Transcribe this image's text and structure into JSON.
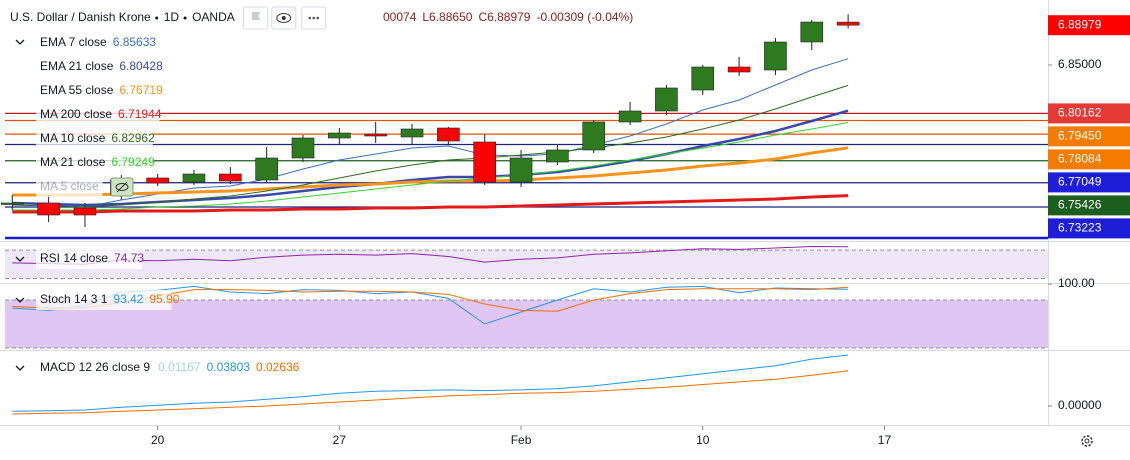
{
  "chart_data": [
    {
      "type": "candlestick",
      "title": "U.S. Dollar / Danish Krone",
      "interval": "1D",
      "source": "OANDA",
      "header_values": [
        "00074",
        "L6.88650",
        "C6.88979",
        "-0.00309 (-0.04%)"
      ],
      "categories": [
        null,
        null,
        null,
        null,
        null,
        null,
        null,
        null,
        null,
        null,
        null,
        null,
        null,
        null,
        null,
        null,
        null,
        null,
        null,
        null,
        null,
        null,
        null,
        null
      ],
      "open": [
        6.711,
        6.712,
        6.707,
        6.72,
        6.737,
        6.733,
        6.741,
        6.735,
        6.757,
        6.777,
        6.781,
        6.778,
        6.787,
        6.773,
        6.733,
        6.753,
        6.765,
        6.793,
        6.804,
        6.825,
        6.848,
        6.845,
        6.873,
        6.89288
      ],
      "high": [
        6.72,
        6.72,
        6.712,
        6.74,
        6.741,
        6.745,
        6.748,
        6.768,
        6.78,
        6.787,
        6.793,
        6.791,
        6.788,
        6.781,
        6.765,
        6.77,
        6.795,
        6.813,
        6.83,
        6.85,
        6.858,
        6.877,
        6.895,
        6.90074
      ],
      "low": [
        6.705,
        6.693,
        6.688,
        6.715,
        6.729,
        6.73,
        6.731,
        6.732,
        6.753,
        6.77,
        6.772,
        6.77,
        6.77,
        6.73,
        6.728,
        6.75,
        6.762,
        6.79,
        6.8,
        6.82,
        6.839,
        6.84,
        6.865,
        6.8865
      ],
      "close": [
        6.712,
        6.7,
        6.7,
        6.735,
        6.732,
        6.741,
        6.734,
        6.757,
        6.777,
        6.782,
        6.779,
        6.786,
        6.774,
        6.733,
        6.757,
        6.765,
        6.793,
        6.804,
        6.827,
        6.848,
        6.843,
        6.873,
        6.893,
        6.88979
      ],
      "up_color": "#2e7a1f",
      "down_color": "#ff0000",
      "last_price_color": "#ff0000",
      "ylim": [
        6.675,
        6.91
      ],
      "yticks": [
        {
          "value": 6.85,
          "label": "6.85000"
        }
      ],
      "xlim": [
        -0.2,
        28.5
      ],
      "xticks": [
        {
          "value": 4,
          "label": "20"
        },
        {
          "value": 9,
          "label": "27"
        },
        {
          "value": 14,
          "label": "Feb"
        },
        {
          "value": 19,
          "label": "10"
        },
        {
          "value": 24,
          "label": "17"
        }
      ],
      "levels": [
        {
          "value": 6.80162,
          "label": "6.80162",
          "color": "#e53935",
          "line_color": "#b71c1c"
        },
        {
          "value": 6.7945,
          "label": "6.79450",
          "color": "#f57c00",
          "line_color": "#e65100"
        },
        {
          "value": 6.78084,
          "label": "6.78084",
          "color": "#f57c00",
          "line_color": "#e65100"
        },
        {
          "value": 6.77049,
          "label": "6.77049",
          "color": "#1e1ed8",
          "line_color": "#1a237e"
        },
        {
          "value": 6.75426,
          "label": "6.75426",
          "color": "#1b5e20",
          "line_color": "#1b5e20"
        },
        {
          "value": 6.73223,
          "label": "6.73223",
          "color": "#1e1ed8",
          "line_color": "#1a237e"
        },
        {
          "value": 6.708,
          "color": "#1a237e",
          "line_color": "#1a237e"
        },
        {
          "value": 6.677,
          "color": "#1a1ad0",
          "line_color": "#1a1ad0"
        }
      ],
      "series": [
        {
          "name": "EMA 7 close",
          "color": "#3a6fc4",
          "width": 1,
          "value_label": "6.85633",
          "values": [
            6.712,
            6.71,
            6.708,
            6.715,
            6.721,
            6.727,
            6.729,
            6.736,
            6.746,
            6.755,
            6.761,
            6.767,
            6.769,
            6.76,
            6.759,
            6.761,
            6.77,
            6.779,
            6.791,
            6.805,
            6.815,
            6.83,
            6.845,
            6.85633
          ]
        },
        {
          "name": "EMA 21 close",
          "color": "#3949ab",
          "width": 2.5,
          "value_label": "6.80428",
          "values": [
            6.712,
            6.711,
            6.71,
            6.711,
            6.713,
            6.715,
            6.717,
            6.72,
            6.724,
            6.728,
            6.731,
            6.735,
            6.738,
            6.738,
            6.74,
            6.743,
            6.748,
            6.754,
            6.761,
            6.769,
            6.776,
            6.784,
            6.794,
            6.80428
          ]
        },
        {
          "name": "EMA 55 close",
          "color": "#f7931a",
          "width": 3,
          "value_label": "6.76719",
          "values": [
            6.72,
            6.72,
            6.72,
            6.721,
            6.722,
            6.723,
            6.724,
            6.726,
            6.728,
            6.73,
            6.731,
            6.733,
            6.734,
            6.734,
            6.735,
            6.737,
            6.739,
            6.742,
            6.745,
            6.749,
            6.752,
            6.756,
            6.762,
            6.76719
          ]
        },
        {
          "name": "MA 200 close",
          "color": "#e31a1a",
          "width": 3,
          "value_label": "6.71944",
          "values": [
            6.703,
            6.703,
            6.703,
            6.704,
            6.704,
            6.704,
            6.705,
            6.705,
            6.706,
            6.706,
            6.707,
            6.707,
            6.708,
            6.708,
            6.709,
            6.71,
            6.711,
            6.712,
            6.713,
            6.714,
            6.715,
            6.716,
            6.718,
            6.71944
          ]
        },
        {
          "name": "MA 10 close",
          "color": "#2e6b1f",
          "width": 1,
          "value_label": "6.82962",
          "values": [
            6.71,
            6.709,
            6.708,
            6.71,
            6.713,
            6.716,
            6.719,
            6.724,
            6.73,
            6.737,
            6.744,
            6.75,
            6.755,
            6.757,
            6.76,
            6.763,
            6.767,
            6.772,
            6.778,
            6.786,
            6.795,
            6.806,
            6.818,
            6.82962
          ]
        },
        {
          "name": "MA 21 close",
          "color": "#33d62a",
          "width": 1,
          "value_label": "6.79249",
          "values": [
            6.705,
            6.705,
            6.705,
            6.706,
            6.708,
            6.709,
            6.711,
            6.714,
            6.718,
            6.722,
            6.726,
            6.73,
            6.734,
            6.737,
            6.74,
            6.744,
            6.749,
            6.755,
            6.761,
            6.767,
            6.773,
            6.78,
            6.786,
            6.79249
          ]
        },
        {
          "name": "MA 5 close",
          "color": "#9aa0b0",
          "visible": false
        }
      ]
    },
    {
      "type": "line",
      "title": "RSI 14 close",
      "ylim": [
        25,
        80
      ],
      "band": [
        30,
        70
      ],
      "band_color": "#efe6f8",
      "series": [
        {
          "color": "#8e24aa",
          "value_label": "74.73",
          "values": [
            52,
            51,
            50,
            56,
            55,
            57,
            55,
            60,
            63,
            64,
            63,
            65,
            61,
            53,
            57,
            59,
            64,
            66,
            69,
            72,
            71,
            73,
            75,
            74.73
          ]
        }
      ]
    },
    {
      "type": "line",
      "title": "Stoch 14 3 1",
      "ylim": [
        20,
        100
      ],
      "yticks": [
        {
          "value": 100,
          "label": "100.00"
        }
      ],
      "band": [
        20,
        80
      ],
      "band_color": "#dfc6f3",
      "series": [
        {
          "color": "#2196f3",
          "value_label": "93.42",
          "values": [
            70,
            67,
            73,
            90,
            92,
            97,
            90,
            88,
            93,
            92,
            88,
            90,
            82,
            50,
            65,
            80,
            94,
            90,
            96,
            97,
            89,
            95,
            94,
            93.42
          ]
        },
        {
          "color": "#ff6d00",
          "value_label": "95.90",
          "values": [
            72,
            70,
            70,
            77,
            85,
            93,
            93,
            92,
            90,
            91,
            91,
            90,
            87,
            75,
            67,
            66,
            80,
            88,
            93,
            94,
            94,
            94,
            93,
            95.9
          ]
        }
      ]
    },
    {
      "type": "line",
      "title": "MACD 12 26 close 9",
      "histogram_label": "0.01167",
      "histogram_color": "#9fd8d0",
      "ylim": [
        -0.0142,
        0.0403
      ],
      "yticks": [
        {
          "value": 0,
          "label": "0.00000"
        }
      ],
      "series": [
        {
          "color": "#2196f3",
          "value_label": "0.03803",
          "values": [
            -0.004,
            -0.0035,
            -0.003,
            -0.001,
            0.0005,
            0.002,
            0.003,
            0.005,
            0.007,
            0.0095,
            0.011,
            0.0115,
            0.012,
            0.0115,
            0.012,
            0.013,
            0.015,
            0.018,
            0.021,
            0.024,
            0.027,
            0.03,
            0.035,
            0.03803
          ]
        },
        {
          "color": "#ff6d00",
          "value_label": "0.02636",
          "values": [
            -0.006,
            -0.0055,
            -0.005,
            -0.004,
            -0.003,
            -0.002,
            -0.001,
            0,
            0.0015,
            0.003,
            0.0045,
            0.006,
            0.0075,
            0.0085,
            0.0095,
            0.01,
            0.011,
            0.0125,
            0.014,
            0.016,
            0.018,
            0.02,
            0.023,
            0.02636
          ]
        }
      ]
    }
  ]
}
